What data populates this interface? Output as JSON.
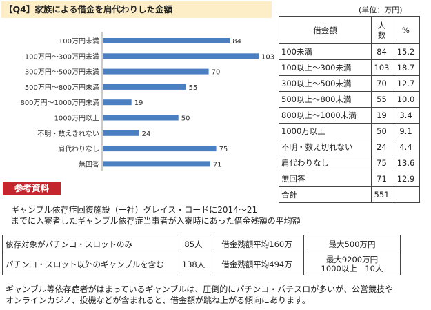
{
  "title": "【Q4】家族による借金を肩代わりした金額",
  "unit": "(単位：万円)",
  "chart_data": {
    "type": "bar",
    "orientation": "horizontal",
    "categories": [
      "100万円未満",
      "100万円～300万円未満",
      "300万円～500万円未満",
      "500万円～800万円未満",
      "800万円～1000万円未満",
      "1000万円以上",
      "不明・数えきれない",
      "肩代わりなし",
      "無回答"
    ],
    "values": [
      84,
      103,
      70,
      55,
      19,
      50,
      24,
      75,
      71
    ],
    "xlim": [
      0,
      103
    ],
    "color": "#4a7fc1"
  },
  "side_table": {
    "headers": [
      "借金額",
      "人数",
      "%"
    ],
    "rows": [
      [
        "100未満",
        "84",
        "15.2"
      ],
      [
        "100以上～300未満",
        "103",
        "18.7"
      ],
      [
        "300以上～500未満",
        "70",
        "12.7"
      ],
      [
        "500以上～800未満",
        "55",
        "10.0"
      ],
      [
        "800以上～1000未満",
        "19",
        "3.4"
      ],
      [
        "1000万以上",
        "50",
        "9.1"
      ],
      [
        "不明・数え切れない",
        "24",
        "4.4"
      ],
      [
        "肩代わりなし",
        "75",
        "13.6"
      ],
      [
        "無回答",
        "71",
        "12.9"
      ]
    ],
    "total_label": "合計",
    "total_value": "551"
  },
  "ref_label": "参考資料",
  "ref_intro_line1": "ギャンブル依存症回復施設（一社）グレイス・ロードに2014～21",
  "ref_intro_line2": "までに入寮者したギャンブル依存症当事者が入寮時にあった借金残額の平均額",
  "ref_table": {
    "row1": {
      "target": "依存対象がパチンコ・スロットのみ",
      "count": "85人",
      "avg": "借金残額平均160万",
      "max": "最大500万円"
    },
    "row2": {
      "target": "パチンコ・スロット以外のギャンブルを含む",
      "count": "138人",
      "avg": "借金残額平均494万",
      "max_line1": "最大9200万円",
      "max_line2": "1000以上　10人"
    }
  },
  "footer_line1": "ギャンブル等依存症者がはまっているギャンブルは、圧倒的にパチンコ・パチスロが多いが、公営競技や",
  "footer_line2": "オンラインカジノ、投機などが含まれると、借金額が跳ね上がる傾向にあります。"
}
